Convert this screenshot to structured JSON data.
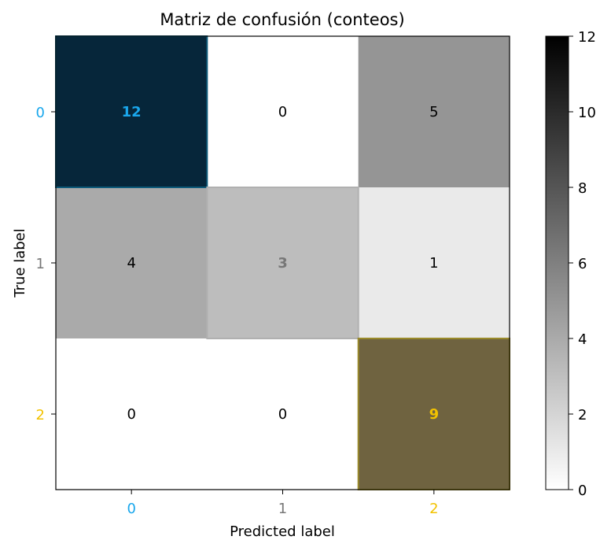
{
  "chart_data": {
    "type": "heatmap",
    "title": "Matriz de confusión (conteos)",
    "xlabel": "Predicted label",
    "ylabel": "True label",
    "x_categories": [
      "0",
      "1",
      "2"
    ],
    "y_categories": [
      "0",
      "1",
      "2"
    ],
    "values": [
      [
        12,
        0,
        5
      ],
      [
        4,
        3,
        1
      ],
      [
        0,
        0,
        9
      ]
    ],
    "colorbar": {
      "min": 0,
      "max": 12,
      "ticks": [
        "0",
        "2",
        "4",
        "6",
        "8",
        "10",
        "12"
      ],
      "colormap": "greys"
    },
    "class_colors": [
      "#1aa7ec",
      "#777777",
      "#f2c200"
    ],
    "diagonal_overlay_colors": [
      "#06263a",
      "#bdbdbd",
      "#6f6340"
    ],
    "diagonal_overlay_border": [
      "#0d5a7a",
      "#b0b0b0",
      "#9a8a2a"
    ],
    "text_color_default": "#000000",
    "text_color_light": "#ffffff"
  }
}
